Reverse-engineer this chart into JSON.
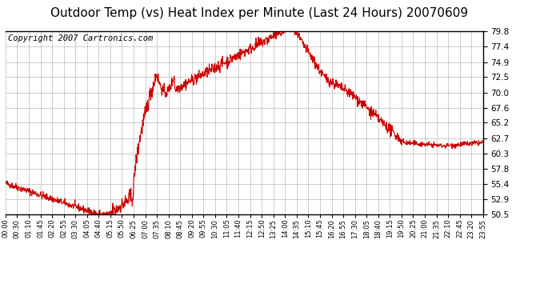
{
  "title": "Outdoor Temp (vs) Heat Index per Minute (Last 24 Hours) 20070609",
  "copyright": "Copyright 2007 Cartronics.com",
  "yticks": [
    50.5,
    52.9,
    55.4,
    57.8,
    60.3,
    62.7,
    65.2,
    67.6,
    70.0,
    72.5,
    74.9,
    77.4,
    79.8
  ],
  "ylim": [
    50.5,
    79.8
  ],
  "xtick_labels": [
    "00:00",
    "00:30",
    "01:10",
    "01:45",
    "02:20",
    "02:55",
    "03:30",
    "04:05",
    "04:40",
    "05:15",
    "05:50",
    "06:25",
    "07:00",
    "07:35",
    "08:10",
    "08:45",
    "09:20",
    "09:55",
    "10:30",
    "11:05",
    "11:40",
    "12:15",
    "12:50",
    "13:25",
    "14:00",
    "14:35",
    "15:10",
    "15:45",
    "16:20",
    "16:55",
    "17:30",
    "18:05",
    "18:40",
    "19:15",
    "19:50",
    "20:25",
    "21:00",
    "21:35",
    "22:10",
    "22:45",
    "23:20",
    "23:55"
  ],
  "line_color": "#cc0000",
  "background_color": "#ffffff",
  "grid_color": "#bbbbbb",
  "title_fontsize": 11,
  "copyright_fontsize": 7.5
}
